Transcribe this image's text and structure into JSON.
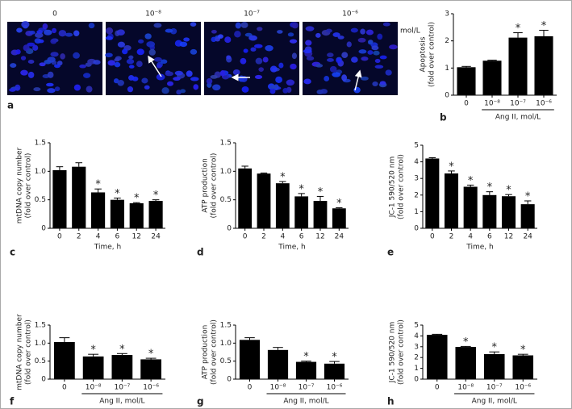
{
  "panel_a": {
    "label": "a",
    "columns": [
      "0",
      "10⁻⁸",
      "10⁻⁷",
      "10⁻⁶"
    ],
    "unit": "mol/L"
  },
  "chart_data": [
    {
      "type": "bar",
      "label": "b",
      "ylabel": [
        "Apoptosis",
        "(fold over control)"
      ],
      "categories": [
        "0",
        "10⁻⁸",
        "10⁻⁷",
        "10⁻⁶"
      ],
      "values": [
        1.03,
        1.27,
        2.12,
        2.17
      ],
      "errors": [
        0.03,
        0.02,
        0.18,
        0.22
      ],
      "significance": [
        null,
        null,
        "*",
        "*"
      ],
      "group_label": "Ang II, mol/L",
      "ylim": [
        0,
        3
      ],
      "yticks": [
        0,
        1,
        2,
        3
      ],
      "color": "#000000"
    },
    {
      "type": "bar",
      "label": "c",
      "ylabel": [
        "mtDNA copy number",
        "(fold over control)"
      ],
      "categories": [
        "0",
        "2",
        "4",
        "6",
        "12",
        "24"
      ],
      "values": [
        1.02,
        1.08,
        0.63,
        0.5,
        0.44,
        0.48
      ],
      "errors": [
        0.06,
        0.07,
        0.06,
        0.03,
        0.01,
        0.02
      ],
      "significance": [
        null,
        null,
        "*",
        "*",
        "*",
        "*"
      ],
      "xlabel": "Time, h",
      "ylim": [
        0,
        1.5
      ],
      "yticks": [
        0,
        0.5,
        {
          "value": 1,
          "label": "1.0"
        },
        1.5
      ],
      "color": "#000000"
    },
    {
      "type": "bar",
      "label": "d",
      "ylabel": [
        "ATP production",
        "(fold over control)"
      ],
      "categories": [
        "0",
        "2",
        "4",
        "6",
        "12",
        "24"
      ],
      "values": [
        1.05,
        0.96,
        0.79,
        0.56,
        0.48,
        0.35
      ],
      "errors": [
        0.04,
        0.01,
        0.03,
        0.05,
        0.08,
        0.01
      ],
      "significance": [
        null,
        null,
        "*",
        "*",
        "*",
        "*"
      ],
      "xlabel": "Time, h",
      "ylim": [
        0,
        1.5
      ],
      "yticks": [
        0,
        0.5,
        {
          "value": 1,
          "label": "1.0"
        },
        1.5
      ],
      "color": "#000000"
    },
    {
      "type": "bar",
      "label": "e",
      "ylabel": [
        "JC-1 590/520 nm",
        "(fold over control)"
      ],
      "categories": [
        "0",
        "2",
        "4",
        "6",
        "12",
        "24"
      ],
      "values": [
        4.2,
        3.3,
        2.5,
        2.0,
        1.93,
        1.45
      ],
      "errors": [
        0.05,
        0.15,
        0.1,
        0.2,
        0.1,
        0.2
      ],
      "significance": [
        null,
        "*",
        "*",
        "*",
        "*",
        "*"
      ],
      "xlabel": "Time, h",
      "ylim": [
        0,
        5
      ],
      "yticks": [
        0,
        1,
        2,
        3,
        4,
        5
      ],
      "color": "#000000"
    },
    {
      "type": "bar",
      "label": "f",
      "ylabel": [
        "mtDNA copy number",
        "(fold over control)"
      ],
      "categories": [
        "0",
        "10⁻⁸",
        "10⁻⁷",
        "10⁻⁶"
      ],
      "values": [
        1.03,
        0.63,
        0.67,
        0.55
      ],
      "errors": [
        0.12,
        0.06,
        0.04,
        0.03
      ],
      "significance": [
        null,
        "*",
        "*",
        "*"
      ],
      "group_label": "Ang II, mol/L",
      "ylim": [
        0,
        1.5
      ],
      "yticks": [
        0,
        0.5,
        {
          "value": 1,
          "label": "1.0"
        },
        1.5
      ],
      "color": "#000000"
    },
    {
      "type": "bar",
      "label": "g",
      "ylabel": [
        "ATP production",
        "(fold over control)"
      ],
      "categories": [
        "0",
        "10⁻⁸",
        "10⁻⁷",
        "10⁻⁶"
      ],
      "values": [
        1.09,
        0.81,
        0.48,
        0.43
      ],
      "errors": [
        0.06,
        0.07,
        0.02,
        0.06
      ],
      "significance": [
        null,
        null,
        "*",
        "*"
      ],
      "group_label": "Ang II, mol/L",
      "ylim": [
        0,
        1.5
      ],
      "yticks": [
        0,
        0.5,
        {
          "value": 1,
          "label": "1.0"
        },
        1.5
      ],
      "color": "#000000"
    },
    {
      "type": "bar",
      "label": "h",
      "ylabel": [
        "JC-1 590/520 nm",
        "(fold over control)"
      ],
      "categories": [
        "0",
        "10⁻⁸",
        "10⁻⁷",
        "10⁻⁶"
      ],
      "values": [
        4.1,
        2.98,
        2.32,
        2.2
      ],
      "errors": [
        0.05,
        0.05,
        0.2,
        0.1
      ],
      "significance": [
        null,
        "*",
        "*",
        "*"
      ],
      "group_label": "Ang II, mol/L",
      "ylim": [
        0,
        5
      ],
      "yticks": [
        0,
        1,
        2,
        3,
        4,
        5
      ],
      "color": "#000000"
    }
  ]
}
